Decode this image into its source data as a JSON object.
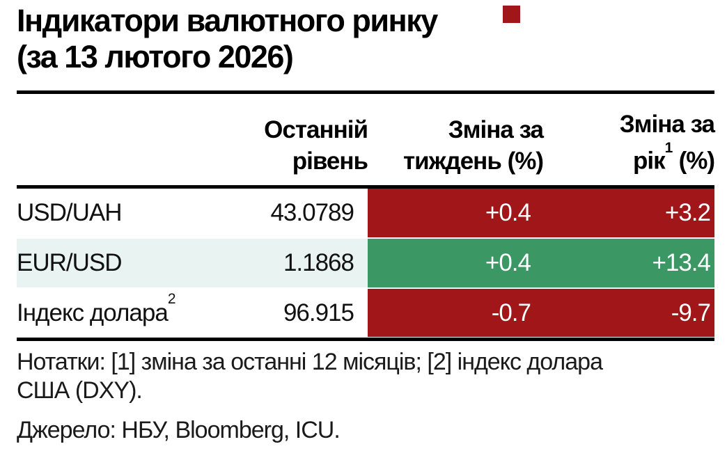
{
  "title": {
    "line1": "Індикатори валютного ринку",
    "line2": "(за 13 лютого 2026)"
  },
  "decor": {
    "red_square_color": "#A11619"
  },
  "table": {
    "headers": {
      "level": {
        "line1": "Останній",
        "line2": "рівень"
      },
      "week": {
        "line1": "Зміна за",
        "line2": "тиждень (%)"
      },
      "year": {
        "line1": "Зміна за",
        "line2_pre": "рік",
        "sup": "1",
        "line2_post": " (%)"
      }
    },
    "rows": [
      {
        "label": "USD/UAH",
        "label_sup": "",
        "level": "43.0789",
        "week": "+0.4",
        "year": "+3.2",
        "row_bg": "#FFFFFF",
        "cell_bg": "#A11619"
      },
      {
        "label": "EUR/USD",
        "label_sup": "",
        "level": "1.1868",
        "week": "+0.4",
        "year": "+13.4",
        "row_bg": "#E9F3F1",
        "cell_bg": "#3B9865"
      },
      {
        "label": "Індекс долара",
        "label_sup": "2",
        "level": "96.915",
        "week": "-0.7",
        "year": "-9.7",
        "row_bg": "#FFFFFF",
        "cell_bg": "#A11619"
      }
    ],
    "colors": {
      "negative_red": "#A11619",
      "positive_green": "#3B9865",
      "highlight_row": "#E9F3F1",
      "change_text": "#FFFFFF",
      "rule_black": "#000000"
    }
  },
  "notes": {
    "line1": "Нотатки: [1] зміна за останні 12 місяців; [2] індекс долара",
    "line2": "США (DXY)."
  },
  "source": "Джерело: НБУ, Bloomberg, ICU.",
  "chart_data": {
    "type": "table",
    "title": "Індикатори валютного ринку (за 13 лютого 2026)",
    "columns": [
      "",
      "Останній рівень",
      "Зміна за тиждень (%)",
      "Зміна за рік (%)"
    ],
    "rows": [
      [
        "USD/UAH",
        43.0789,
        0.4,
        3.2
      ],
      [
        "EUR/USD",
        1.1868,
        0.4,
        13.4
      ],
      [
        "Індекс долара (DXY)",
        96.915,
        -0.7,
        -9.7
      ]
    ]
  }
}
